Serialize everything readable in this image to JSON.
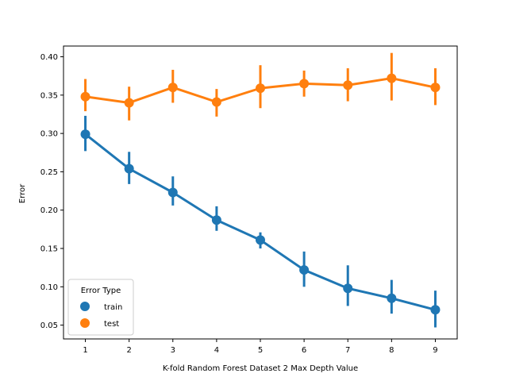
{
  "chart_data": {
    "type": "line",
    "title": "",
    "xlabel": "K-fold Random Forest Dataset 2 Max Depth Value",
    "ylabel": "Error",
    "x": [
      1,
      2,
      3,
      4,
      5,
      6,
      7,
      8,
      9
    ],
    "xlim": [
      0.5,
      9.5
    ],
    "ylim": [
      0.032,
      0.414
    ],
    "yticks": [
      0.05,
      0.1,
      0.15,
      0.2,
      0.25,
      0.3,
      0.35,
      0.4
    ],
    "ytick_labels": [
      "0.05",
      "0.10",
      "0.15",
      "0.20",
      "0.25",
      "0.30",
      "0.35",
      "0.40"
    ],
    "grid": false,
    "legend": {
      "title": "Error Type",
      "placement": "lower-left"
    },
    "series": [
      {
        "name": "train",
        "color": "#1f77b4",
        "values": [
          0.299,
          0.254,
          0.223,
          0.187,
          0.161,
          0.122,
          0.098,
          0.085,
          0.07
        ],
        "err_low": [
          0.277,
          0.234,
          0.206,
          0.173,
          0.15,
          0.1,
          0.075,
          0.065,
          0.047
        ],
        "err_high": [
          0.323,
          0.276,
          0.244,
          0.205,
          0.171,
          0.146,
          0.128,
          0.109,
          0.095
        ]
      },
      {
        "name": "test",
        "color": "#ff7f0e",
        "values": [
          0.348,
          0.34,
          0.36,
          0.341,
          0.359,
          0.365,
          0.363,
          0.372,
          0.36
        ],
        "err_low": [
          0.329,
          0.317,
          0.34,
          0.322,
          0.333,
          0.348,
          0.342,
          0.343,
          0.337
        ],
        "err_high": [
          0.371,
          0.361,
          0.383,
          0.358,
          0.389,
          0.382,
          0.385,
          0.405,
          0.385
        ]
      }
    ]
  }
}
